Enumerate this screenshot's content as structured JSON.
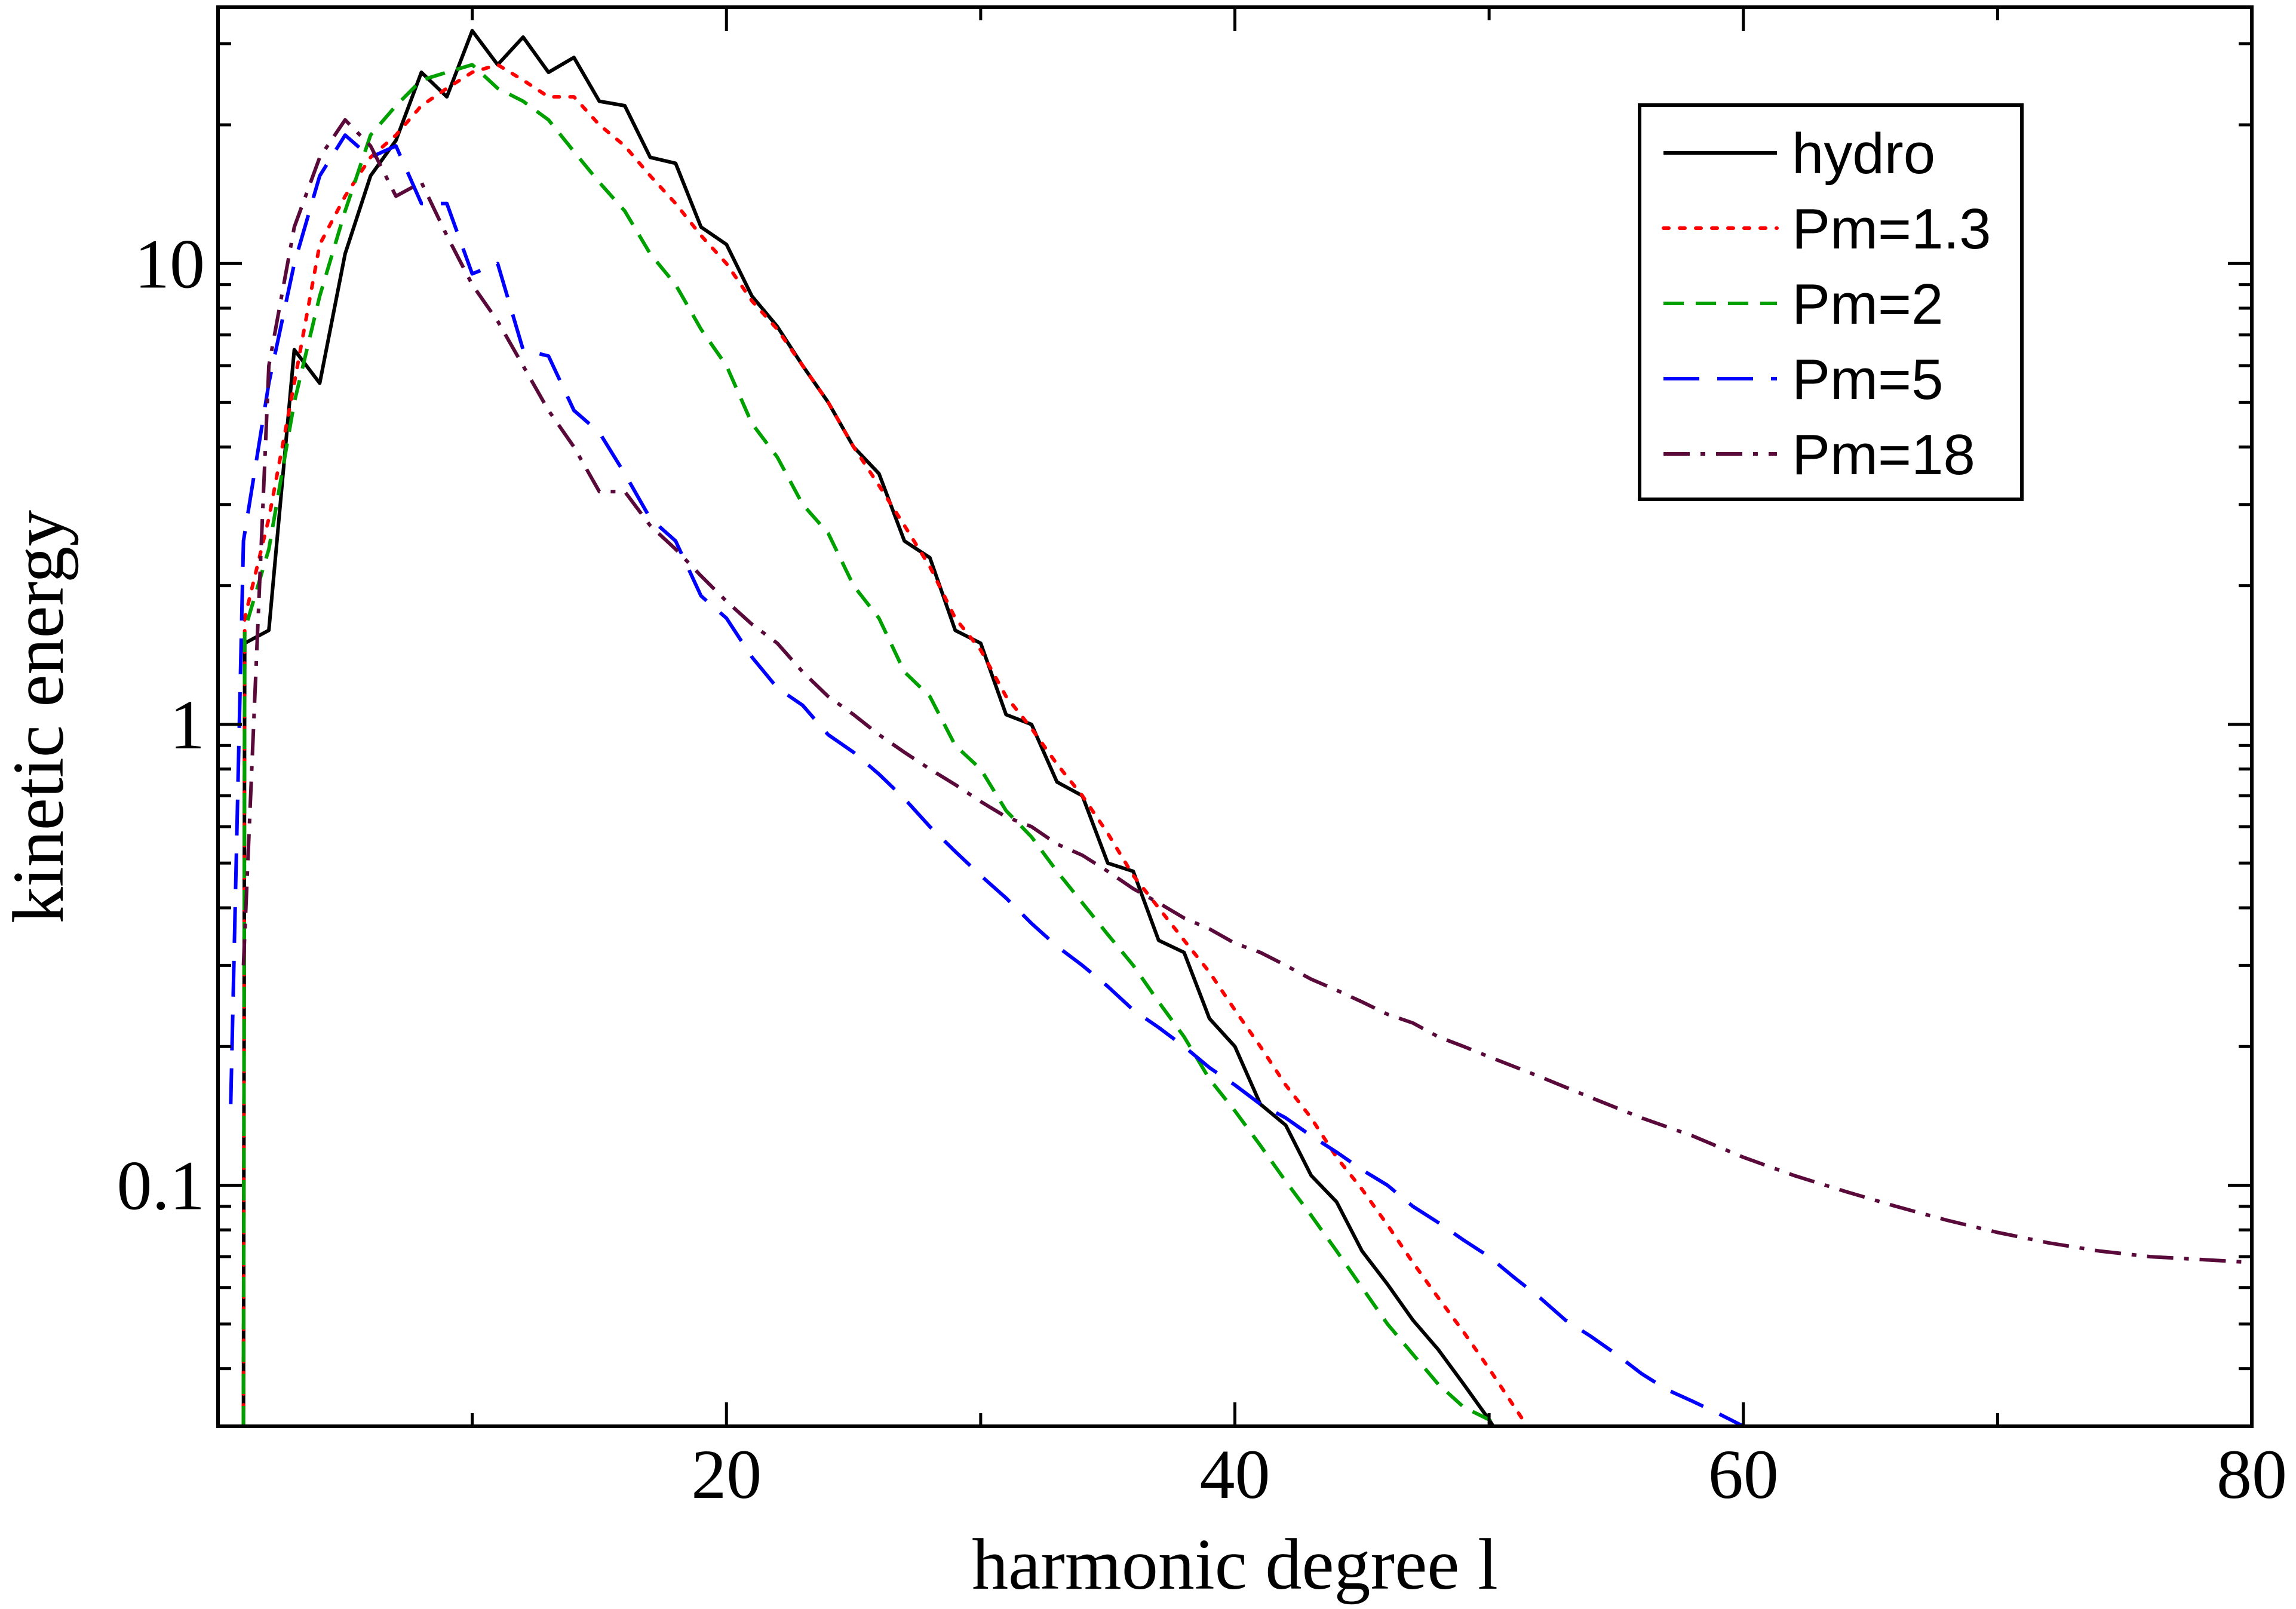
{
  "chart_data": {
    "type": "line",
    "title": "",
    "xlabel": "harmonic degree l",
    "ylabel": "kinetic energy",
    "xlim": [
      0,
      80
    ],
    "ylim": [
      0.03,
      36
    ],
    "yscale": "log",
    "xticks": [
      20,
      40,
      60,
      80
    ],
    "xtick_labels": [
      "20",
      "40",
      "60",
      "80"
    ],
    "yticks": [
      0.1,
      1,
      10
    ],
    "ytick_labels": [
      "0.1",
      "1",
      "10"
    ],
    "grid": false,
    "legend_position": "top-right",
    "series": [
      {
        "name": "hydro",
        "color": "#000000",
        "dash": "solid",
        "x": [
          1,
          1.05,
          2,
          3,
          4,
          5,
          6,
          7,
          8,
          9,
          10,
          11,
          12,
          13,
          14,
          15,
          16,
          17,
          18,
          19,
          20,
          21,
          22,
          23,
          24,
          25,
          26,
          27,
          28,
          29,
          30,
          31,
          32,
          33,
          34,
          35,
          36,
          37,
          38,
          39,
          40,
          41,
          42,
          43,
          44,
          45,
          46,
          47,
          48,
          49,
          50,
          50.5
        ],
        "y": [
          0.03,
          1.5,
          1.6,
          6.5,
          5.5,
          10.5,
          15.5,
          18.5,
          26,
          23,
          32,
          27,
          31,
          26,
          28,
          22.5,
          22,
          17,
          16.5,
          12,
          11,
          8.5,
          7.3,
          6,
          5,
          4,
          3.5,
          2.5,
          2.3,
          1.6,
          1.5,
          1.05,
          1.0,
          0.75,
          0.7,
          0.5,
          0.48,
          0.34,
          0.32,
          0.23,
          0.2,
          0.15,
          0.135,
          0.105,
          0.092,
          0.072,
          0.061,
          0.051,
          0.044,
          0.037,
          0.031,
          0.028
        ]
      },
      {
        "name": "Pm=1.3",
        "color": "#ff0000",
        "dash": "dotted",
        "x": [
          1,
          1.05,
          2,
          3,
          4,
          5,
          6,
          7,
          8,
          9,
          10,
          11,
          12,
          13,
          14,
          15,
          16,
          17,
          18,
          19,
          20,
          21,
          22,
          23,
          24,
          25,
          26,
          27,
          28,
          29,
          30,
          31,
          32,
          33,
          34,
          35,
          36,
          37,
          38,
          39,
          40,
          41,
          42,
          43,
          44,
          45,
          46,
          47,
          48,
          49,
          50,
          51,
          51.5
        ],
        "y": [
          0.03,
          1.7,
          2.8,
          5.5,
          11,
          14,
          17,
          19,
          22,
          24,
          26,
          27,
          25,
          23,
          23,
          20,
          18,
          15.5,
          13.5,
          11.5,
          10,
          8.3,
          7.2,
          6,
          5,
          4,
          3.3,
          2.7,
          2.2,
          1.7,
          1.45,
          1.15,
          0.98,
          0.82,
          0.7,
          0.58,
          0.47,
          0.4,
          0.34,
          0.29,
          0.24,
          0.2,
          0.165,
          0.14,
          0.115,
          0.098,
          0.082,
          0.068,
          0.057,
          0.048,
          0.04,
          0.033,
          0.03
        ]
      },
      {
        "name": "Pm=2",
        "color": "#00a000",
        "dash": "dashed",
        "x": [
          1,
          1.05,
          2,
          3,
          4,
          5,
          6,
          7,
          8,
          9,
          10,
          11,
          12,
          13,
          14,
          15,
          16,
          17,
          18,
          19,
          20,
          21,
          22,
          23,
          24,
          25,
          26,
          27,
          28,
          29,
          30,
          31,
          32,
          33,
          34,
          35,
          36,
          37,
          38,
          39,
          40,
          41,
          42,
          43,
          44,
          45,
          46,
          47,
          48,
          49,
          50,
          50.3
        ],
        "y": [
          0.03,
          1.6,
          2.4,
          5,
          8.5,
          13,
          19,
          22,
          25,
          26,
          27,
          24,
          22.5,
          20.5,
          17.5,
          15,
          13,
          10.5,
          9,
          7.2,
          6,
          4.5,
          3.8,
          3.0,
          2.6,
          2.0,
          1.7,
          1.3,
          1.15,
          0.9,
          0.8,
          0.65,
          0.57,
          0.48,
          0.41,
          0.35,
          0.3,
          0.25,
          0.21,
          0.17,
          0.145,
          0.122,
          0.102,
          0.086,
          0.072,
          0.06,
          0.05,
          0.043,
          0.037,
          0.033,
          0.031,
          0.03
        ]
      },
      {
        "name": "Pm=5",
        "color": "#0000ff",
        "dash": "long-dashed",
        "x": [
          0.5,
          1,
          2,
          3,
          4,
          5,
          6,
          7,
          8,
          9,
          10,
          11,
          12,
          13,
          14,
          15,
          16,
          17,
          18,
          19,
          20,
          21,
          22,
          23,
          24,
          25,
          26,
          27,
          28,
          29,
          30,
          31,
          32,
          33,
          34,
          35,
          36,
          37,
          38,
          39,
          40,
          41,
          42,
          43,
          44,
          45,
          46,
          47,
          48,
          49,
          50,
          51,
          52,
          53,
          54,
          55,
          56,
          57,
          58,
          59,
          60,
          61
        ],
        "y": [
          0.15,
          2.5,
          5.5,
          10,
          15.5,
          19,
          17,
          18,
          13.5,
          13.5,
          9.5,
          10,
          6.5,
          6.3,
          4.8,
          4.3,
          3.5,
          2.8,
          2.5,
          1.9,
          1.7,
          1.4,
          1.2,
          1.1,
          0.95,
          0.87,
          0.78,
          0.69,
          0.6,
          0.53,
          0.47,
          0.42,
          0.37,
          0.33,
          0.3,
          0.27,
          0.24,
          0.22,
          0.2,
          0.18,
          0.165,
          0.15,
          0.14,
          0.128,
          0.118,
          0.108,
          0.1,
          0.09,
          0.083,
          0.076,
          0.07,
          0.063,
          0.057,
          0.051,
          0.047,
          0.043,
          0.039,
          0.036,
          0.034,
          0.032,
          0.03,
          0.029
        ]
      },
      {
        "name": "Pm=18",
        "color": "#5a0a3a",
        "dash": "dash-dot",
        "x": [
          1,
          2,
          3,
          4,
          5,
          6,
          7,
          8,
          9,
          10,
          11,
          12,
          13,
          14,
          15,
          16,
          17,
          18,
          19,
          20,
          21,
          22,
          23,
          24,
          25,
          26,
          27,
          28,
          29,
          30,
          31,
          32,
          33,
          34,
          35,
          36,
          37,
          38,
          39,
          40,
          41,
          42,
          43,
          44,
          45,
          46,
          47,
          48,
          49,
          50,
          52,
          54,
          56,
          58,
          60,
          62,
          64,
          66,
          68,
          70,
          72,
          74,
          76,
          78,
          80
        ],
        "y": [
          0.3,
          6,
          12,
          17,
          20.5,
          18,
          14,
          15,
          11.5,
          9,
          7.5,
          6,
          4.8,
          4,
          3.2,
          3.2,
          2.7,
          2.4,
          2.1,
          1.85,
          1.65,
          1.5,
          1.3,
          1.15,
          1.05,
          0.95,
          0.87,
          0.8,
          0.74,
          0.68,
          0.63,
          0.6,
          0.55,
          0.52,
          0.48,
          0.44,
          0.41,
          0.38,
          0.36,
          0.335,
          0.32,
          0.3,
          0.28,
          0.265,
          0.25,
          0.235,
          0.225,
          0.21,
          0.2,
          0.19,
          0.172,
          0.155,
          0.14,
          0.128,
          0.115,
          0.105,
          0.097,
          0.09,
          0.084,
          0.079,
          0.075,
          0.072,
          0.07,
          0.069,
          0.068
        ]
      }
    ]
  }
}
